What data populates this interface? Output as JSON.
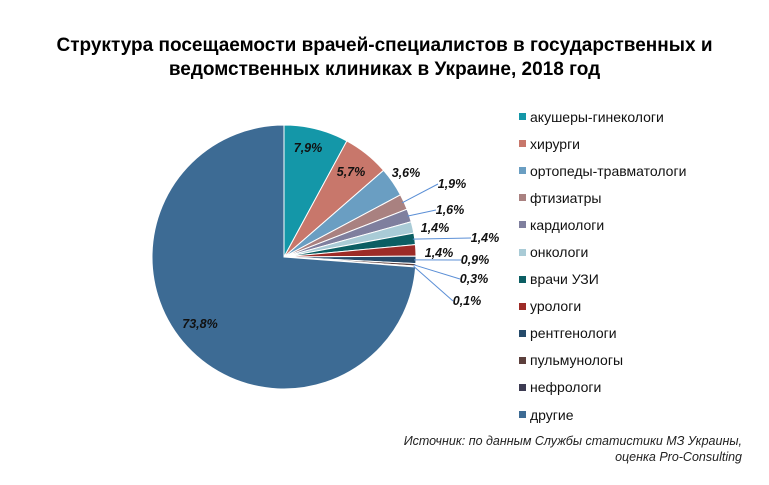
{
  "chart_data": {
    "type": "pie",
    "title_lines": [
      "Структура посещаемости врачей-специалистов в государственных и",
      "ведомственных клиниках в Украине, 2018 год"
    ],
    "slices": [
      {
        "name": "акушеры-гинекологи",
        "value": 7.9,
        "label": "7,9%",
        "color": "#1497a8"
      },
      {
        "name": "хирурги",
        "value": 5.7,
        "label": "5,7%",
        "color": "#c8776b"
      },
      {
        "name": "ортопеды-травматологи",
        "value": 3.6,
        "label": "3,6%",
        "color": "#6a9ec2"
      },
      {
        "name": "фтизиатры",
        "value": 1.9,
        "label": "1,9%",
        "color": "#a98180"
      },
      {
        "name": "кардиологи",
        "value": 1.6,
        "label": "1,6%",
        "color": "#7f7f9e"
      },
      {
        "name": "онкологи",
        "value": 1.4,
        "label": "1,4%",
        "color": "#a9cbd6"
      },
      {
        "name": "врачи УЗИ",
        "value": 1.4,
        "label": "1,4%",
        "color": "#0b5e63"
      },
      {
        "name": "урологи",
        "value": 1.4,
        "label": "1,4%",
        "color": "#9d2b27"
      },
      {
        "name": "рентгенологи",
        "value": 0.9,
        "label": "0,9%",
        "color": "#254a6a"
      },
      {
        "name": "пульмунологы",
        "value": 0.3,
        "label": "0,3%",
        "color": "#5c3f3c"
      },
      {
        "name": "нефрологи",
        "value": 0.1,
        "label": "0,1%",
        "color": "#3c3b52"
      },
      {
        "name": "другие",
        "value": 73.8,
        "label": "73,8%",
        "color": "#3d6b94"
      }
    ],
    "legend_position": "right",
    "start_angle_deg": 0,
    "direction": "clockwise"
  },
  "source_lines": [
    "Источник: по данным Службы статистики МЗ Украины,",
    "оценка Pro-Consulting"
  ]
}
